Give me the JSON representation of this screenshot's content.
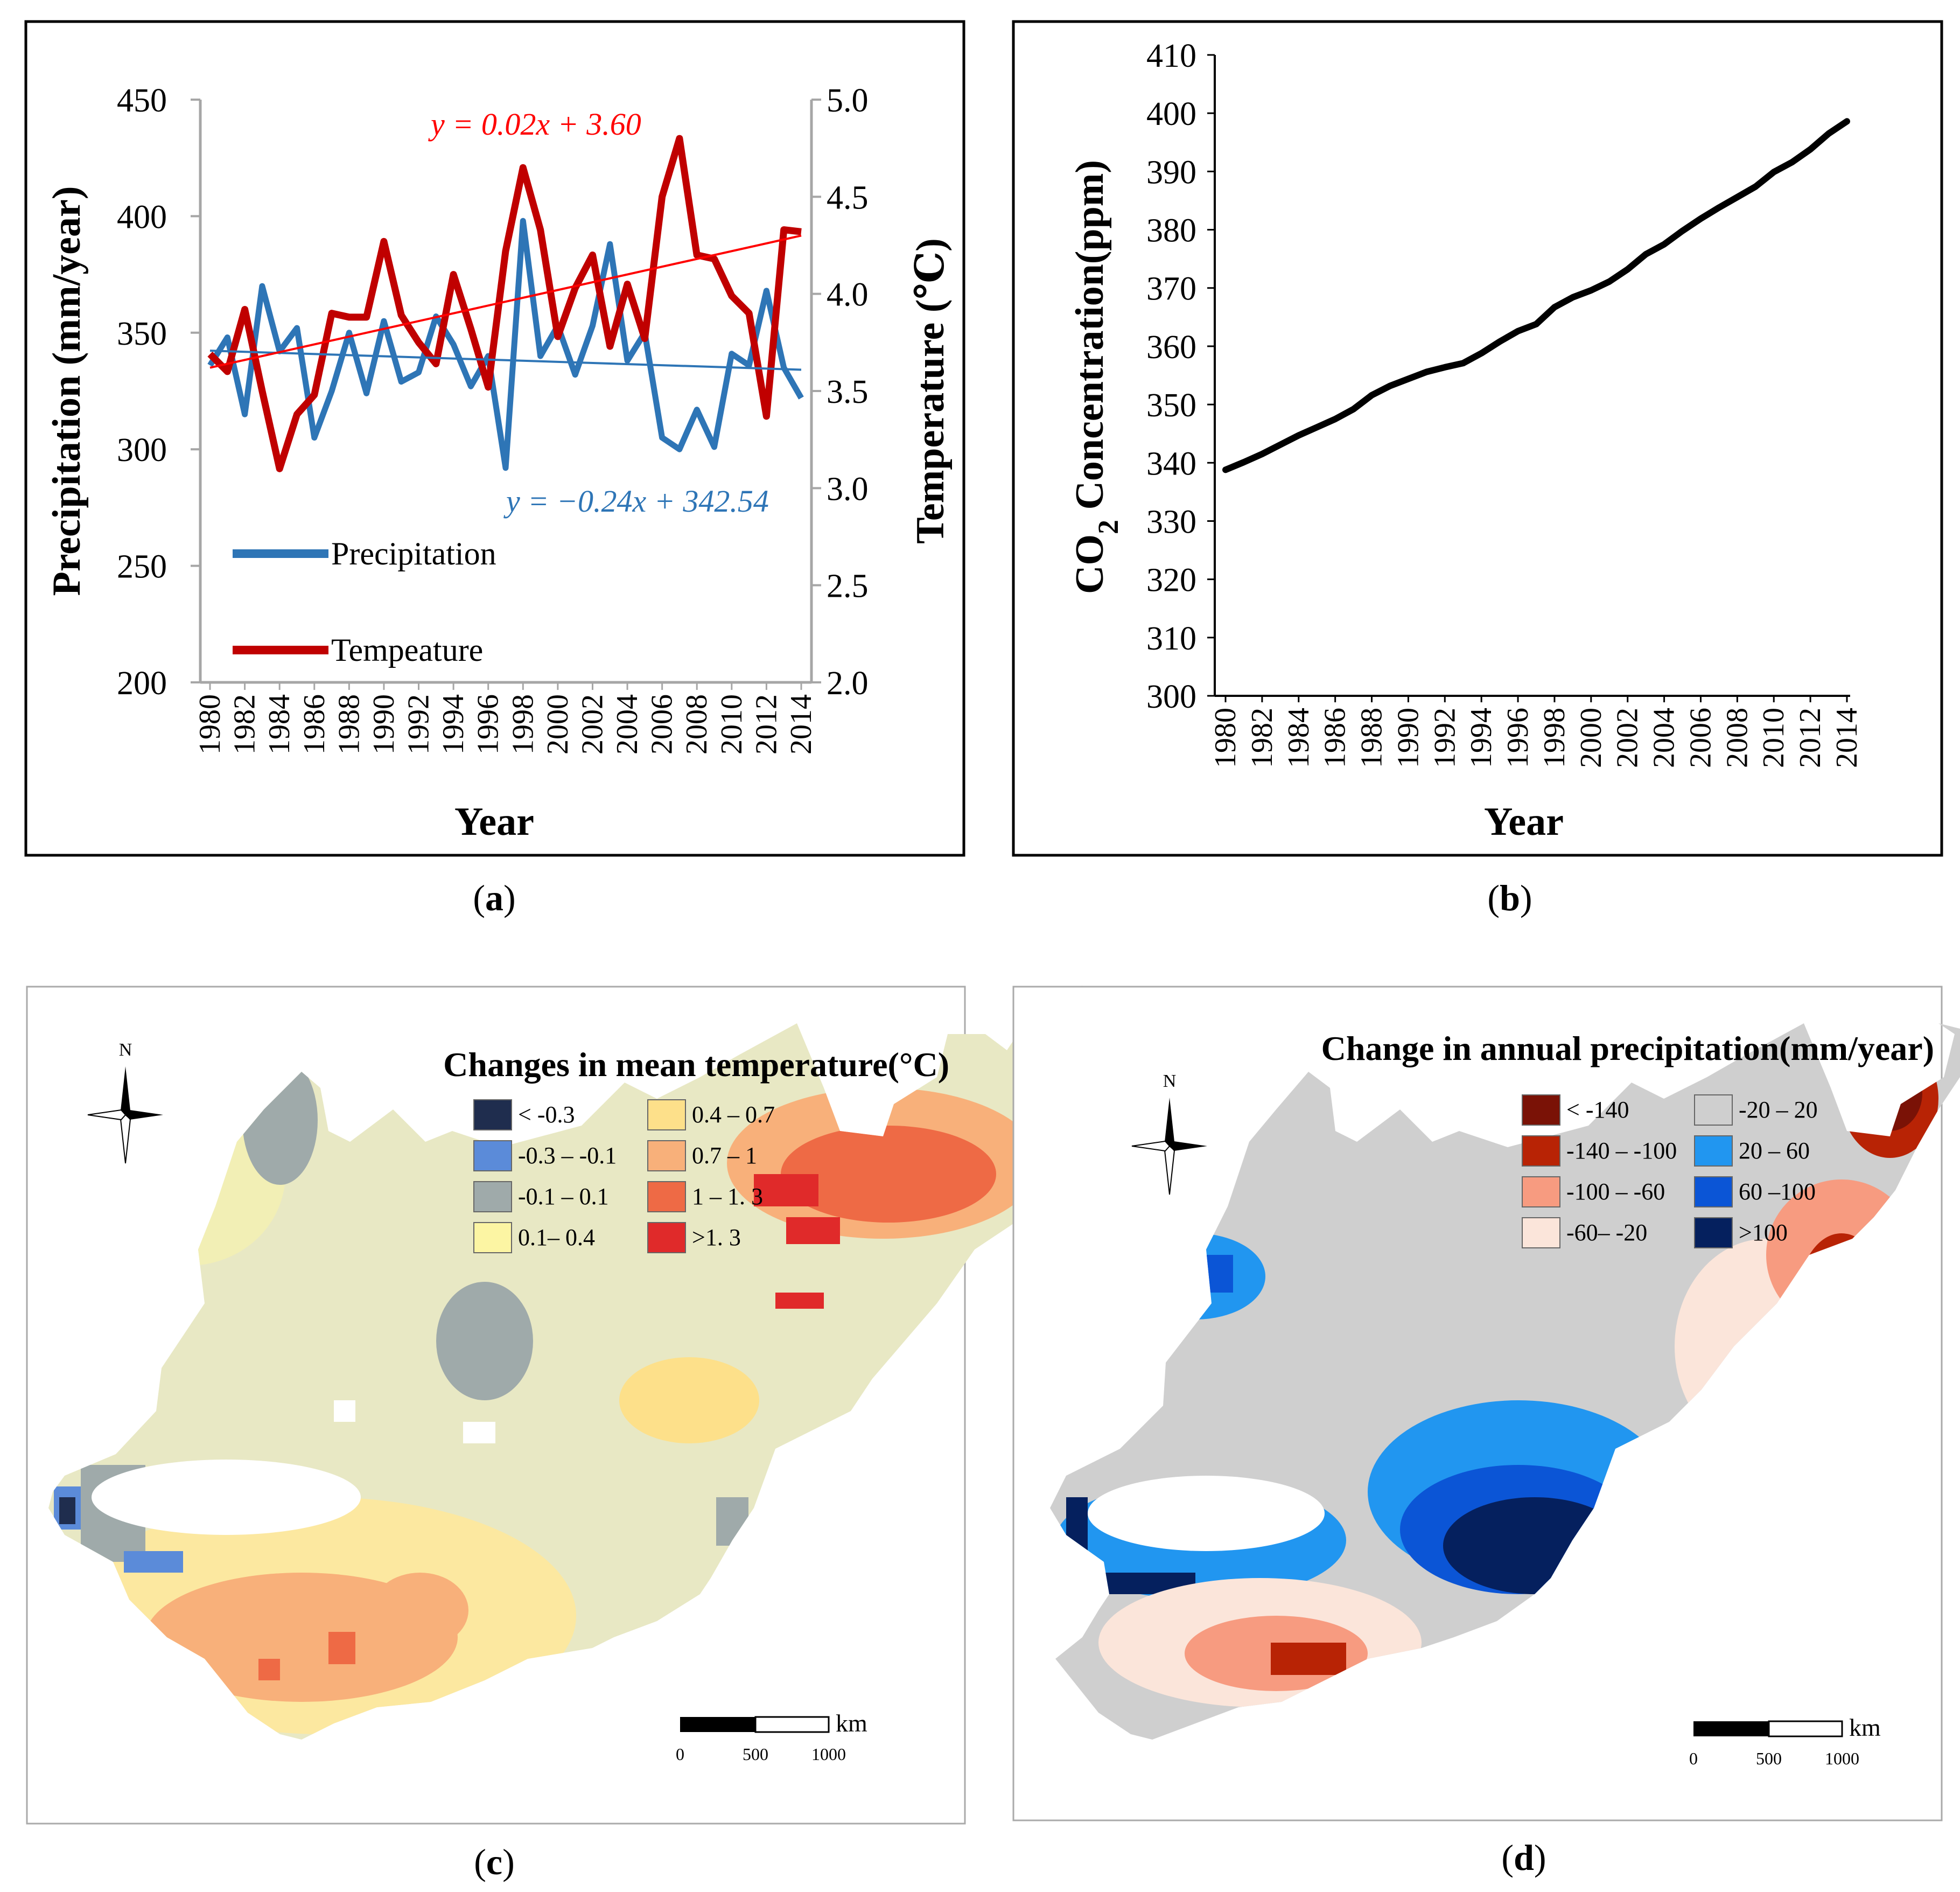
{
  "panels": {
    "a": {
      "caption_letter": "a"
    },
    "b": {
      "caption_letter": "b"
    },
    "c": {
      "caption_letter": "c"
    },
    "d": {
      "caption_letter": "d"
    }
  },
  "chart_data": [
    {
      "id": "a",
      "type": "line",
      "xlabel": "Year",
      "ylabel_left": "Precipitation (mm/year)",
      "ylabel_right": "Temperature (℃)",
      "ylim_left": [
        200,
        450
      ],
      "ylim_right": [
        2.0,
        5.0
      ],
      "yticks_left": [
        "200",
        "250",
        "300",
        "350",
        "400",
        "450"
      ],
      "yticks_right": [
        "2.0",
        "2.5",
        "3.0",
        "3.5",
        "4.0",
        "4.5",
        "5.0"
      ],
      "xticks": [
        "1980",
        "1982",
        "1984",
        "1986",
        "1988",
        "1990",
        "1992",
        "1994",
        "1996",
        "1998",
        "2000",
        "2002",
        "2004",
        "2006",
        "2008",
        "2010",
        "2012",
        "2014"
      ],
      "years": [
        1980,
        1981,
        1982,
        1983,
        1984,
        1985,
        1986,
        1987,
        1988,
        1989,
        1990,
        1991,
        1992,
        1993,
        1994,
        1995,
        1996,
        1997,
        1998,
        1999,
        2000,
        2001,
        2002,
        2003,
        2004,
        2005,
        2006,
        2007,
        2008,
        2009,
        2010,
        2011,
        2012,
        2013,
        2014
      ],
      "series": [
        {
          "name": "Precipitation",
          "axis": "left",
          "color": "#2e75b6",
          "values": [
            336,
            348,
            315,
            370,
            342,
            352,
            305,
            325,
            350,
            324,
            355,
            329,
            333,
            357,
            345,
            327,
            340,
            292,
            398,
            340,
            353,
            332,
            353,
            388,
            338,
            350,
            305,
            300,
            317,
            301,
            341,
            336,
            368,
            335,
            322
          ]
        },
        {
          "name": "Tempeature",
          "axis": "right",
          "color": "#c00000",
          "values": [
            3.69,
            3.6,
            3.92,
            3.5,
            3.1,
            3.38,
            3.48,
            3.9,
            3.88,
            3.88,
            4.27,
            3.89,
            3.75,
            3.64,
            4.1,
            3.82,
            3.52,
            4.22,
            4.65,
            4.33,
            3.78,
            4.03,
            4.2,
            3.73,
            4.05,
            3.77,
            4.5,
            4.8,
            4.2,
            4.18,
            3.99,
            3.9,
            3.37,
            4.33,
            4.32
          ]
        }
      ],
      "trendlines": [
        {
          "series": "Precipitation",
          "label": "y = −0.24x + 342.54",
          "slope": -0.24,
          "intercept": 342.54,
          "color": "#2e75b6"
        },
        {
          "series": "Tempeature",
          "label": "y = 0.02x + 3.60",
          "slope": 0.02,
          "intercept": 3.6,
          "color": "#ff0000"
        }
      ],
      "legend": [
        "Precipitation",
        "Tempeature"
      ]
    },
    {
      "id": "b",
      "type": "line",
      "xlabel": "Year",
      "ylabel_pre": "CO",
      "ylabel_sub": "2",
      "ylabel_post": " Concentration(ppm)",
      "ylim": [
        300,
        410
      ],
      "yticks": [
        "300",
        "310",
        "320",
        "330",
        "340",
        "350",
        "360",
        "370",
        "380",
        "390",
        "400",
        "410"
      ],
      "xticks": [
        "1980",
        "1982",
        "1984",
        "1986",
        "1988",
        "1990",
        "1992",
        "1994",
        "1996",
        "1998",
        "2000",
        "2002",
        "2004",
        "2006",
        "2008",
        "2010",
        "2012",
        "2014"
      ],
      "years": [
        1980,
        1981,
        1982,
        1983,
        1984,
        1985,
        1986,
        1987,
        1988,
        1989,
        1990,
        1991,
        1992,
        1993,
        1994,
        1995,
        1996,
        1997,
        1998,
        1999,
        2000,
        2001,
        2002,
        2003,
        2004,
        2005,
        2006,
        2007,
        2008,
        2009,
        2010,
        2011,
        2012,
        2013,
        2014
      ],
      "series": [
        {
          "name": "CO2",
          "color": "#000000",
          "values": [
            338.8,
            340.1,
            341.5,
            343.1,
            344.7,
            346.1,
            347.5,
            349.2,
            351.6,
            353.2,
            354.4,
            355.6,
            356.4,
            357.1,
            358.8,
            360.8,
            362.6,
            363.8,
            366.7,
            368.4,
            369.6,
            371.1,
            373.2,
            375.8,
            377.5,
            379.8,
            381.9,
            383.8,
            385.6,
            387.4,
            389.9,
            391.6,
            393.8,
            396.5,
            398.6
          ]
        }
      ]
    },
    {
      "id": "c",
      "type": "map",
      "title": "Changes in mean temperature(°C)",
      "legend": [
        {
          "label": "< -0.3",
          "color": "#1f2d4e"
        },
        {
          "label": "0.4 – 0.7",
          "color": "#fde08a"
        },
        {
          "label": "-0.3 – -0.1",
          "color": "#5b8bd9"
        },
        {
          "label": "0.7 – 1",
          "color": "#f8b07a"
        },
        {
          "label": "-0.1 – 0.1",
          "color": "#9faaaa"
        },
        {
          "label": "1 – 1. 3",
          "color": "#ee6a45"
        },
        {
          "label": "0.1– 0.4",
          "color": "#fcf5a3"
        },
        {
          "label": ">1. 3",
          "color": "#e02a2a"
        }
      ],
      "scale_unit": "km",
      "scale_ticks": [
        "0",
        "500",
        "1000"
      ],
      "north": "N"
    },
    {
      "id": "d",
      "type": "map",
      "title": "Change in annual precipitation(mm/year)",
      "legend": [
        {
          "label": "< -140",
          "color": "#7a1206"
        },
        {
          "label": "-20 – 20",
          "color": "#cfcfcf"
        },
        {
          "label": "-140 – -100",
          "color": "#b82305"
        },
        {
          "label": "20 – 60",
          "color": "#2196f0"
        },
        {
          "label": "-100 – -60",
          "color": "#f79b80"
        },
        {
          "label": "60 –100",
          "color": "#0b55d6"
        },
        {
          "label": "-60– -20",
          "color": "#fbe5da"
        },
        {
          "label": ">100",
          "color": "#05205e"
        }
      ],
      "scale_unit": "km",
      "scale_ticks": [
        "0",
        "500",
        "1000"
      ],
      "north": "N"
    }
  ]
}
